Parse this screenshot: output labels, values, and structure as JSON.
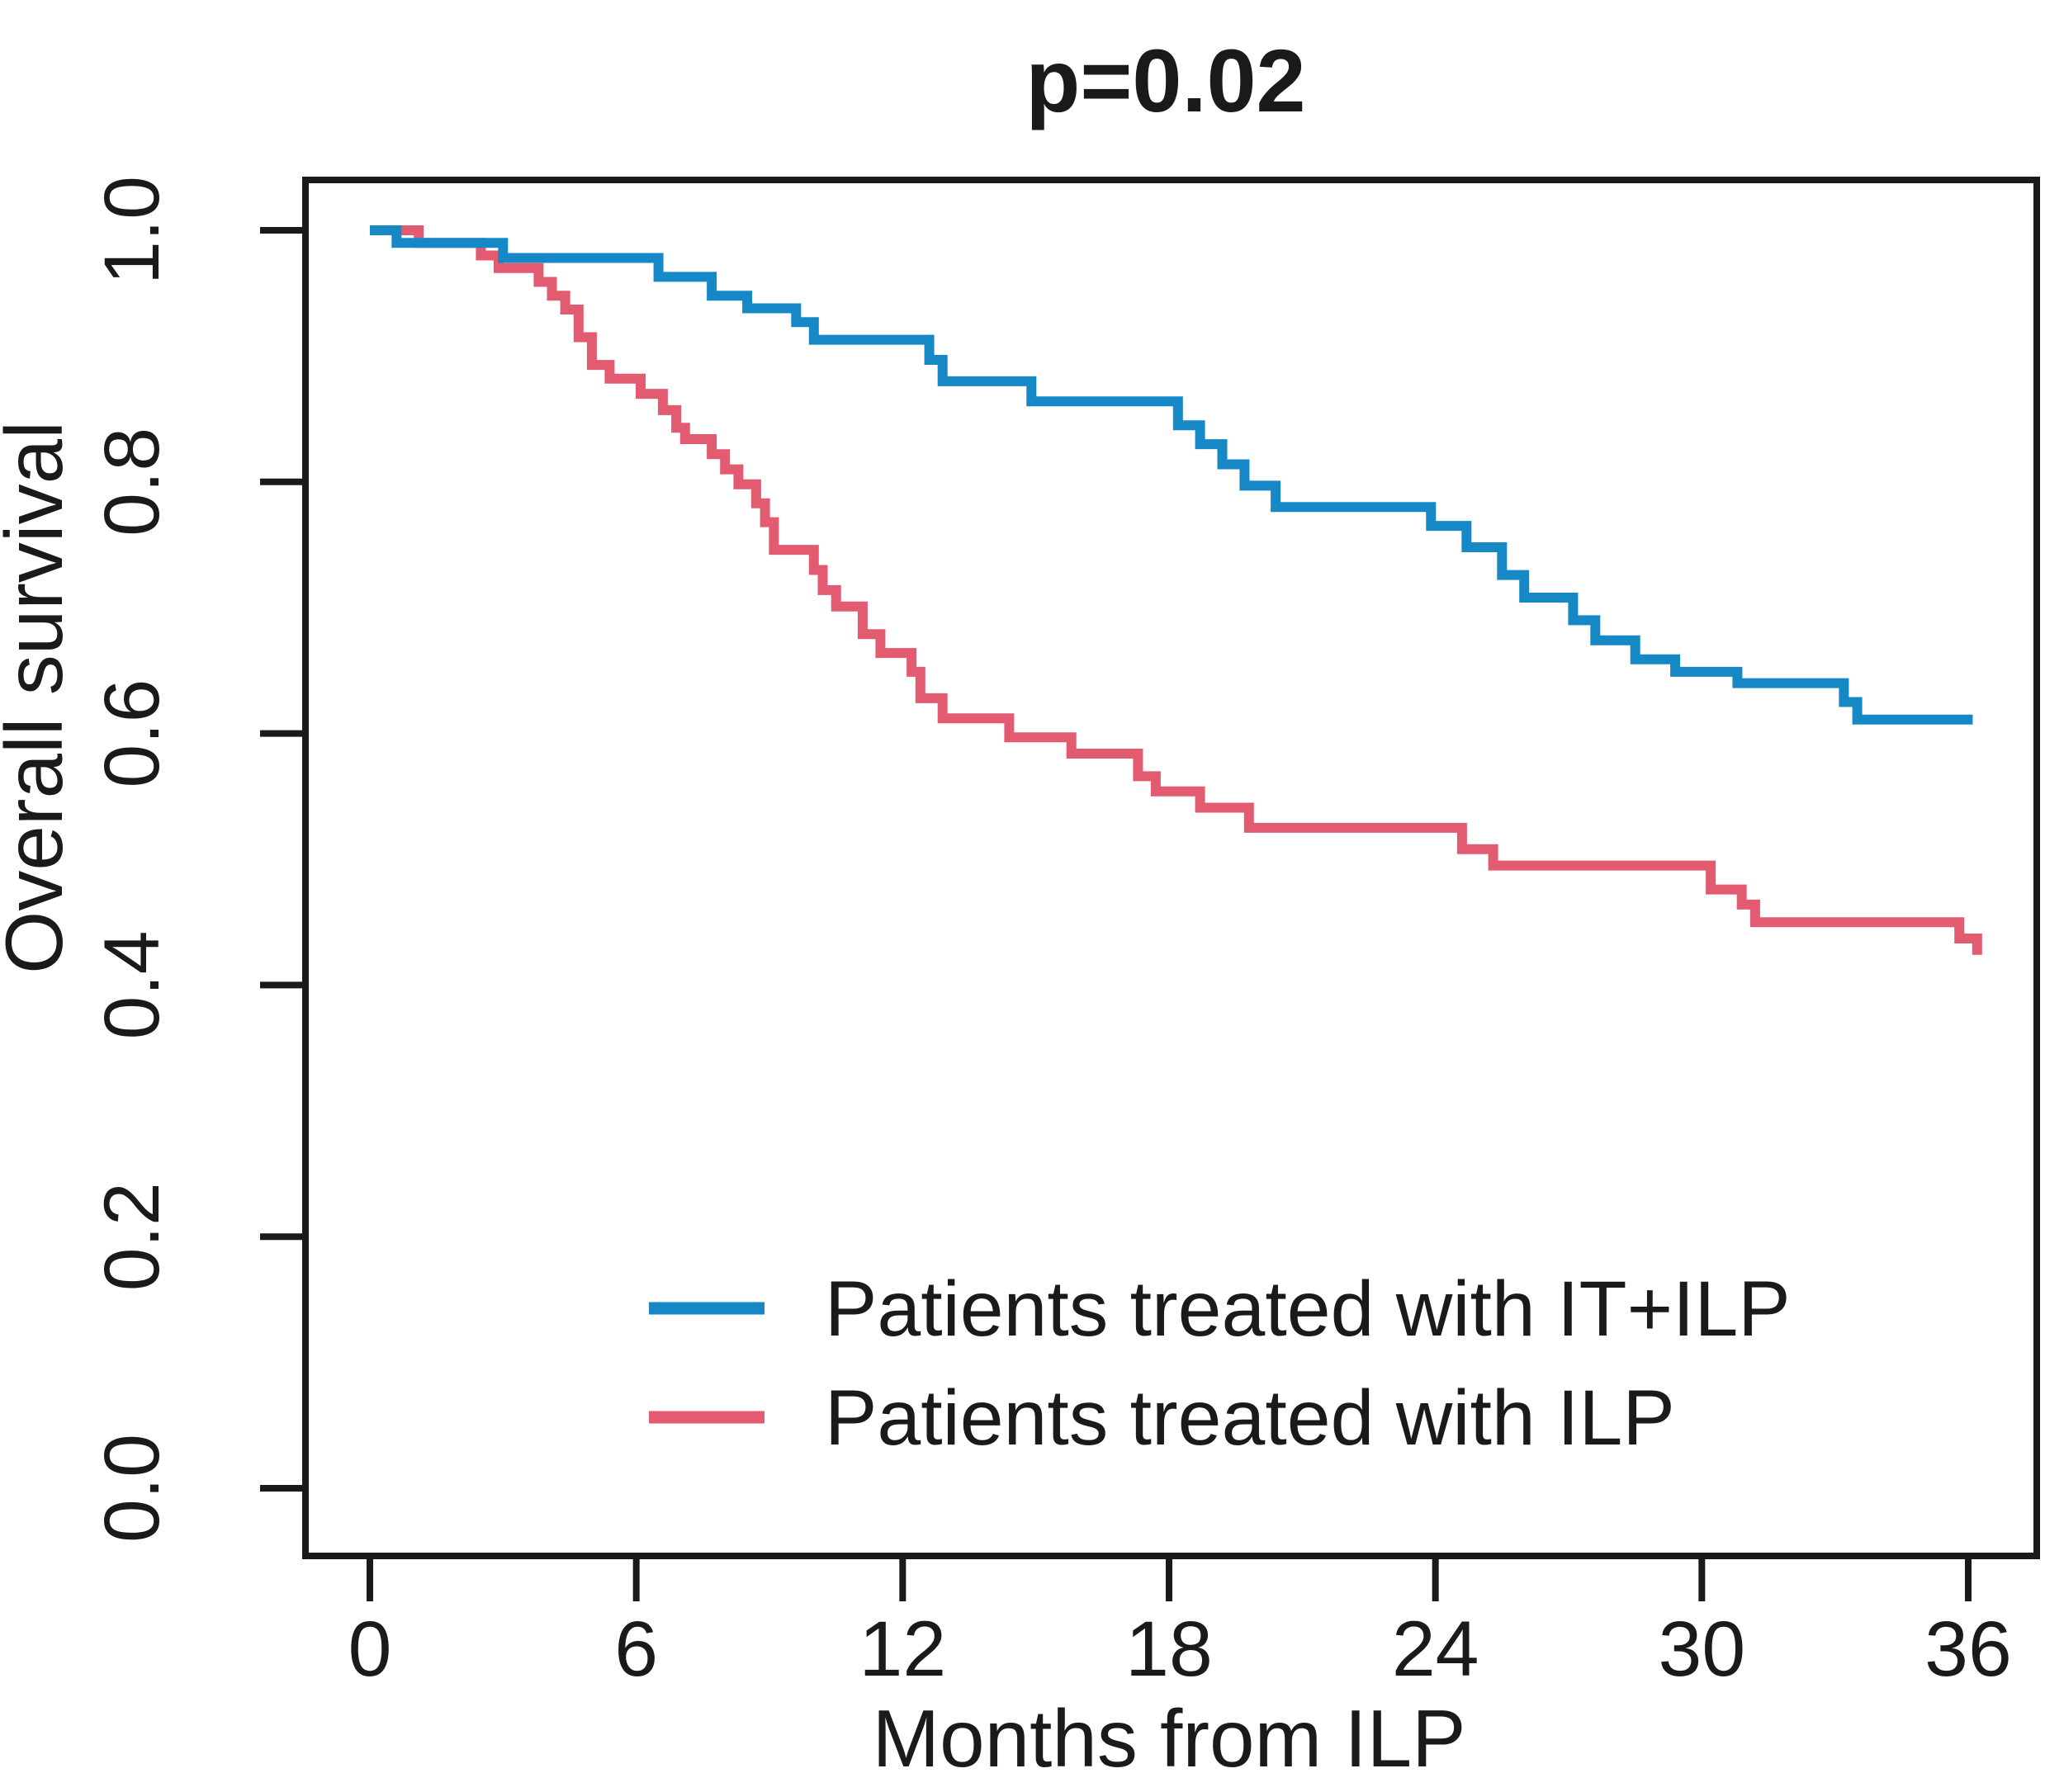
{
  "title": "p=0.02",
  "axes": {
    "x_label": "Months from ILP",
    "y_label": "Overall survival",
    "x_ticks": [
      "0",
      "6",
      "12",
      "18",
      "24",
      "30",
      "36"
    ],
    "y_ticks": [
      "0.0",
      "0.2",
      "0.4",
      "0.6",
      "0.8",
      "1.0"
    ]
  },
  "legend": {
    "items": [
      {
        "label": "Patients treated with IT+ILP",
        "color": "#1688c6"
      },
      {
        "label": "Patients treated with ILP",
        "color": "#e25b70"
      }
    ]
  },
  "chart_data": {
    "type": "line",
    "subtype": "kaplan-meier-step",
    "title": "p=0.02",
    "xlabel": "Months from ILP",
    "ylabel": "Overall survival",
    "xlim": [
      0,
      36
    ],
    "ylim": [
      0.0,
      1.0
    ],
    "x_tick_values": [
      0,
      6,
      12,
      18,
      24,
      30,
      36
    ],
    "y_tick_values": [
      0.0,
      0.2,
      0.4,
      0.6,
      0.8,
      1.0
    ],
    "grid": false,
    "legend_position": "lower-center",
    "series": [
      {
        "name": "Patients treated with IT+ILP",
        "color": "#1688c6",
        "points": [
          [
            0,
            1.0
          ],
          [
            0.6,
            0.99
          ],
          [
            3.0,
            0.978
          ],
          [
            6.5,
            0.963
          ],
          [
            7.7,
            0.948
          ],
          [
            8.5,
            0.938
          ],
          [
            9.6,
            0.927
          ],
          [
            10.0,
            0.913
          ],
          [
            12.6,
            0.897
          ],
          [
            12.9,
            0.88
          ],
          [
            14.9,
            0.864
          ],
          [
            18.2,
            0.845
          ],
          [
            18.7,
            0.83
          ],
          [
            19.2,
            0.814
          ],
          [
            19.7,
            0.797
          ],
          [
            20.4,
            0.78
          ],
          [
            23.9,
            0.765
          ],
          [
            24.7,
            0.748
          ],
          [
            25.5,
            0.726
          ],
          [
            26.0,
            0.708
          ],
          [
            27.1,
            0.69
          ],
          [
            27.6,
            0.674
          ],
          [
            28.5,
            0.659
          ],
          [
            29.4,
            0.649
          ],
          [
            30.8,
            0.64
          ],
          [
            33.2,
            0.625
          ],
          [
            33.5,
            0.611
          ],
          [
            36.1,
            0.611
          ]
        ]
      },
      {
        "name": "Patients treated with ILP",
        "color": "#e25b70",
        "points": [
          [
            0,
            1.0
          ],
          [
            1.1,
            0.99
          ],
          [
            2.5,
            0.98
          ],
          [
            2.9,
            0.97
          ],
          [
            3.8,
            0.959
          ],
          [
            4.1,
            0.948
          ],
          [
            4.4,
            0.937
          ],
          [
            4.7,
            0.915
          ],
          [
            5.0,
            0.893
          ],
          [
            5.4,
            0.882
          ],
          [
            6.1,
            0.87
          ],
          [
            6.6,
            0.857
          ],
          [
            6.9,
            0.843
          ],
          [
            7.1,
            0.834
          ],
          [
            7.7,
            0.822
          ],
          [
            8.0,
            0.81
          ],
          [
            8.3,
            0.798
          ],
          [
            8.7,
            0.783
          ],
          [
            8.9,
            0.768
          ],
          [
            9.1,
            0.746
          ],
          [
            10.0,
            0.73
          ],
          [
            10.2,
            0.714
          ],
          [
            10.5,
            0.701
          ],
          [
            11.1,
            0.679
          ],
          [
            11.5,
            0.664
          ],
          [
            12.2,
            0.649
          ],
          [
            12.4,
            0.628
          ],
          [
            12.9,
            0.612
          ],
          [
            14.4,
            0.597
          ],
          [
            15.8,
            0.584
          ],
          [
            17.3,
            0.566
          ],
          [
            17.7,
            0.554
          ],
          [
            18.7,
            0.541
          ],
          [
            19.8,
            0.525
          ],
          [
            24.6,
            0.508
          ],
          [
            25.3,
            0.495
          ],
          [
            30.2,
            0.476
          ],
          [
            30.9,
            0.464
          ],
          [
            31.2,
            0.45
          ],
          [
            35.8,
            0.437
          ],
          [
            36.2,
            0.424
          ]
        ]
      }
    ]
  }
}
